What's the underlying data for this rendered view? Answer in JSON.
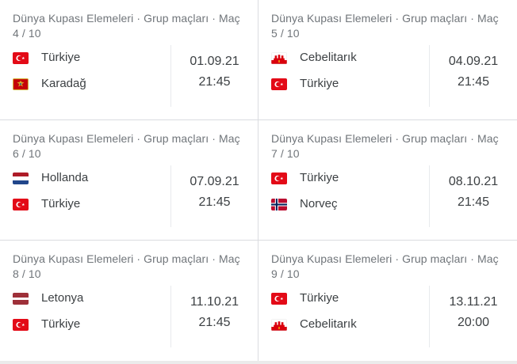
{
  "colors": {
    "divider": "#dadce0",
    "inner-divider": "#e8eaed",
    "header_text": "#70757a",
    "text": "#3c4043",
    "page_bg": "#ffffff",
    "bottom_strip": "#ebebeb"
  },
  "matches": [
    {
      "header": "Dünya Kupası Elemeleri · Grup maçları · Maç 4 / 10",
      "teams": [
        {
          "name": "Türkiye",
          "flag": "turkey"
        },
        {
          "name": "Karadağ",
          "flag": "montenegro"
        }
      ],
      "date": "01.09.21",
      "time": "21:45"
    },
    {
      "header": "Dünya Kupası Elemeleri · Grup maçları · Maç 5 / 10",
      "teams": [
        {
          "name": "Cebelitarık",
          "flag": "gibraltar"
        },
        {
          "name": "Türkiye",
          "flag": "turkey"
        }
      ],
      "date": "04.09.21",
      "time": "21:45"
    },
    {
      "header": "Dünya Kupası Elemeleri · Grup maçları · Maç 6 / 10",
      "teams": [
        {
          "name": "Hollanda",
          "flag": "netherlands"
        },
        {
          "name": "Türkiye",
          "flag": "turkey"
        }
      ],
      "date": "07.09.21",
      "time": "21:45"
    },
    {
      "header": "Dünya Kupası Elemeleri · Grup maçları · Maç 7 / 10",
      "teams": [
        {
          "name": "Türkiye",
          "flag": "turkey"
        },
        {
          "name": "Norveç",
          "flag": "norway"
        }
      ],
      "date": "08.10.21",
      "time": "21:45"
    },
    {
      "header": "Dünya Kupası Elemeleri · Grup maçları · Maç 8 / 10",
      "teams": [
        {
          "name": "Letonya",
          "flag": "latvia"
        },
        {
          "name": "Türkiye",
          "flag": "turkey"
        }
      ],
      "date": "11.10.21",
      "time": "21:45"
    },
    {
      "header": "Dünya Kupası Elemeleri · Grup maçları · Maç 9 / 10",
      "teams": [
        {
          "name": "Türkiye",
          "flag": "turkey"
        },
        {
          "name": "Cebelitarık",
          "flag": "gibraltar"
        }
      ],
      "date": "13.11.21",
      "time": "20:00"
    }
  ]
}
